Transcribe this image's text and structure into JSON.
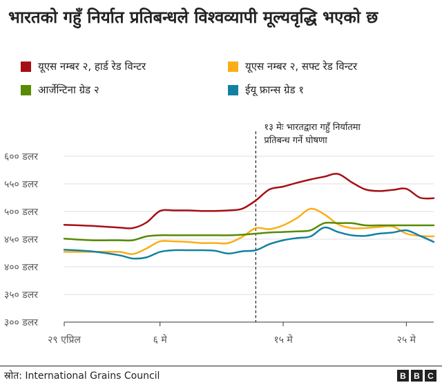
{
  "title": "भारतको गहुँ निर्यात प्रतिबन्धले विश्वव्यापी मूल्यवृद्धि भएको छ",
  "source": "स्रोत: International Grains Council",
  "logo": [
    "B",
    "B",
    "C"
  ],
  "chart_data": {
    "type": "line",
    "ylim": [
      300,
      600
    ],
    "yticks": [
      600,
      550,
      500,
      450,
      400,
      350,
      300
    ],
    "ytick_labels": [
      "६०० डलर",
      "५५० डलर",
      "५०० डलर",
      "४५० डलर",
      "४०० डलर",
      "३५० डलर",
      "३०० डलर"
    ],
    "xlim": [
      0,
      27
    ],
    "xticks": [
      0,
      7,
      16,
      25
    ],
    "xtick_labels": [
      "२९ एप्रिल",
      "६ मे",
      "१५ मे",
      "२५ मे"
    ],
    "grid": true,
    "annotation": {
      "x": 14,
      "text_line1": "१३ मेः भारतद्वारा गहुँ निर्यातमा",
      "text_line2": "प्रतिबन्ध गर्ने घोषणा"
    },
    "series": [
      {
        "name": "यूएस नम्बर २, हार्ड रेड विन्टर",
        "color": "#a50f15",
        "x": [
          0,
          2,
          4,
          5,
          6,
          7,
          8,
          9,
          10,
          11,
          12,
          13,
          14,
          15,
          16,
          17,
          18,
          19,
          20,
          21,
          22,
          23,
          24,
          25,
          26,
          27
        ],
        "values": [
          476,
          474,
          471,
          470,
          480,
          501,
          502,
          502,
          501,
          501,
          502,
          505,
          520,
          540,
          545,
          552,
          558,
          563,
          568,
          553,
          540,
          537,
          539,
          541,
          525,
          524
        ]
      },
      {
        "name": "यूएस नम्बर २, सफ्ट रेड विन्टर",
        "color": "#fbad18",
        "x": [
          0,
          2,
          4,
          5,
          6,
          7,
          8,
          9,
          10,
          11,
          12,
          13,
          14,
          15,
          16,
          17,
          18,
          19,
          20,
          21,
          22,
          23,
          24,
          25,
          26,
          27
        ],
        "values": [
          427,
          427,
          427,
          423,
          433,
          446,
          446,
          445,
          443,
          443,
          443,
          454,
          470,
          468,
          475,
          488,
          505,
          495,
          477,
          470,
          470,
          472,
          473,
          460,
          456,
          455
        ]
      },
      {
        "name": "आर्जेन्टिना ग्रेड २",
        "color": "#588a03",
        "x": [
          0,
          2,
          4,
          5,
          6,
          7,
          8,
          9,
          10,
          11,
          12,
          13,
          14,
          15,
          16,
          17,
          18,
          19,
          20,
          21,
          22,
          23,
          24,
          25,
          26,
          27
        ],
        "values": [
          451,
          448,
          448,
          448,
          455,
          457,
          457,
          457,
          457,
          457,
          457,
          458,
          460,
          462,
          463,
          464,
          466,
          479,
          479,
          479,
          475,
          475,
          475,
          475,
          475,
          475
        ]
      },
      {
        "name": "ईयू फ्रान्स ग्रेड १",
        "color": "#1380a1",
        "x": [
          0,
          2,
          4,
          5,
          6,
          7,
          8,
          9,
          10,
          11,
          12,
          13,
          14,
          15,
          16,
          17,
          18,
          19,
          20,
          21,
          22,
          23,
          24,
          25,
          26,
          27
        ],
        "values": [
          431,
          428,
          421,
          415,
          417,
          427,
          430,
          430,
          430,
          429,
          424,
          428,
          430,
          441,
          448,
          452,
          455,
          471,
          463,
          457,
          456,
          460,
          462,
          466,
          456,
          445
        ]
      }
    ]
  }
}
